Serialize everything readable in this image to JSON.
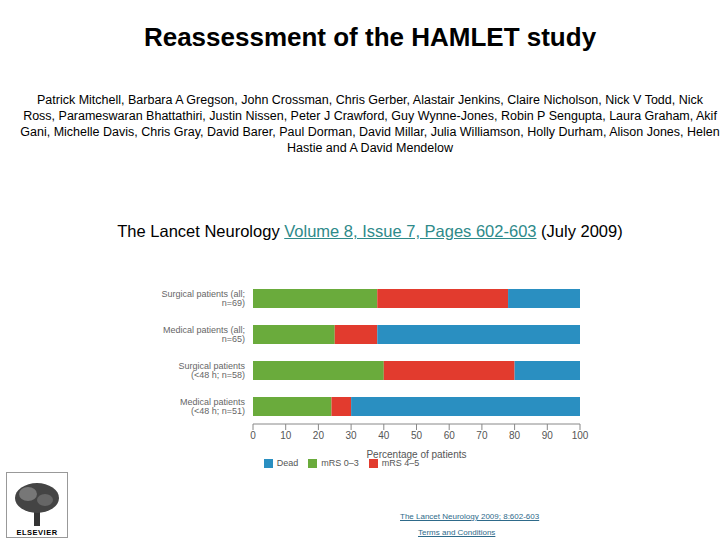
{
  "title": "Reassessment of the HAMLET study",
  "authors": "Patrick Mitchell, Barbara A Gregson, John Crossman, Chris Gerber, Alastair Jenkins, Claire Nicholson, Nick V Todd, Nick Ross, Parameswaran Bhattathiri, Justin Nissen, Peter J Crawford, Guy Wynne-Jones, Robin P Sengupta, Laura Graham, Akif Gani, Michelle Davis, Chris Gray, David Barer, Paul Dorman, David Millar, Julia Williamson, Holly Durham, Alison Jones, Helen Hastie and A David Mendelow",
  "citation": {
    "journal": "The Lancet Neurology",
    "link": "Volume 8, Issue 7, Pages 602-603",
    "date": "(July 2009)"
  },
  "logo_text": "ELSEVIER",
  "footer": {
    "reference": "The Lancet Neurology 2009; 8:602-603",
    "terms": "Terms and Conditions"
  },
  "chart_data": {
    "type": "bar",
    "orientation": "horizontal",
    "stacked": true,
    "grid": false,
    "legend": "bottom",
    "x_label": "Percentage of patients",
    "categories": [
      "Surgical patients (all; n=69)",
      "Medical patients (all; n=65)",
      "Surgical patients (<48 h; n=58)",
      "Medical patients (<48 h; n=51)"
    ],
    "series": [
      {
        "name": "mRS 0–3",
        "color": "#6aab3c",
        "values": [
          38,
          25,
          40,
          24
        ]
      },
      {
        "name": "mRS 4–5",
        "color": "#e23b2e",
        "values": [
          40,
          13,
          40,
          6
        ]
      },
      {
        "name": "Dead",
        "color": "#2a8fc1",
        "values": [
          22,
          62,
          20,
          70
        ]
      }
    ],
    "xlim": [
      0,
      100
    ],
    "xticks": [
      0,
      10,
      20,
      30,
      40,
      50,
      60,
      70,
      80,
      90,
      100
    ]
  }
}
